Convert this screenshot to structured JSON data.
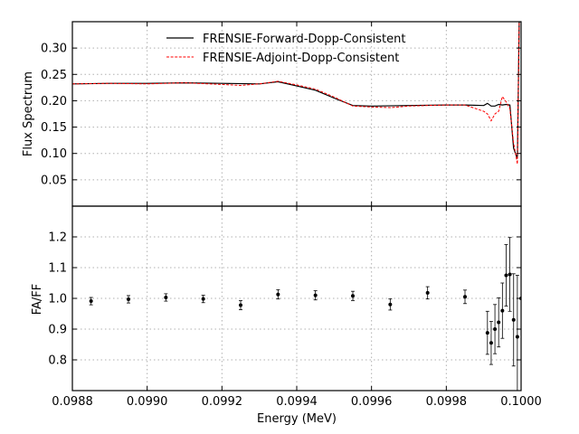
{
  "chart_data": [
    {
      "type": "line",
      "title": "",
      "xlabel": "",
      "ylabel": "Flux Spectrum",
      "xlim": [
        0.0988,
        0.1
      ],
      "ylim": [
        0.0,
        0.35
      ],
      "yticks": [
        0.05,
        0.1,
        0.15,
        0.2,
        0.25,
        0.3
      ],
      "ytick_labels": [
        "0.05",
        "0.10",
        "0.15",
        "0.20",
        "0.25",
        "0.30"
      ],
      "grid": true,
      "legend": "top-center",
      "series": [
        {
          "name": "FRENSIE-Forward-Dopp-Consistent",
          "color": "#000000",
          "style": "solid",
          "x": [
            0.0988,
            0.0989,
            0.099,
            0.0991,
            0.0992,
            0.0993,
            0.09935,
            0.0994,
            0.09945,
            0.0995,
            0.09955,
            0.0996,
            0.0997,
            0.0998,
            0.09985,
            0.0999,
            0.09991,
            0.09992,
            0.09993,
            0.09994,
            0.09995,
            0.09996,
            0.09997,
            0.09998,
            0.09999,
            0.099995,
            0.1
          ],
          "y": [
            0.232,
            0.233,
            0.233,
            0.234,
            0.233,
            0.232,
            0.236,
            0.228,
            0.22,
            0.205,
            0.191,
            0.19,
            0.191,
            0.192,
            0.192,
            0.191,
            0.195,
            0.19,
            0.19,
            0.193,
            0.192,
            0.193,
            0.192,
            0.11,
            0.09,
            0.35,
            0.35
          ]
        },
        {
          "name": "FRENSIE-Adjoint-Dopp-Consistent",
          "color": "#ff0000",
          "style": "dashed",
          "x": [
            0.0988,
            0.0989,
            0.099,
            0.0991,
            0.0992,
            0.09925,
            0.0993,
            0.09935,
            0.0994,
            0.09945,
            0.0995,
            0.09955,
            0.0996,
            0.09965,
            0.0997,
            0.0998,
            0.09985,
            0.0999,
            0.09991,
            0.09992,
            0.09993,
            0.09994,
            0.09995,
            0.09996,
            0.09997,
            0.09998,
            0.09999,
            0.099995,
            0.1
          ],
          "y": [
            0.232,
            0.233,
            0.232,
            0.234,
            0.231,
            0.229,
            0.232,
            0.237,
            0.23,
            0.222,
            0.207,
            0.19,
            0.188,
            0.187,
            0.19,
            0.192,
            0.192,
            0.18,
            0.175,
            0.162,
            0.175,
            0.18,
            0.208,
            0.198,
            0.185,
            0.12,
            0.08,
            0.35,
            0.35
          ]
        }
      ]
    },
    {
      "type": "scatter",
      "title": "",
      "xlabel": "Energy (MeV)",
      "ylabel": "FA/FF",
      "xlim": [
        0.0988,
        0.1
      ],
      "ylim": [
        0.7,
        1.3
      ],
      "xticks": [
        0.0988,
        0.099,
        0.0992,
        0.0994,
        0.0996,
        0.0998,
        0.1
      ],
      "xtick_labels": [
        "0.0988",
        "0.0990",
        "0.0992",
        "0.0994",
        "0.0996",
        "0.0998",
        "0.1000"
      ],
      "yticks": [
        0.8,
        0.9,
        1.0,
        1.1,
        1.2
      ],
      "ytick_labels": [
        "0.8",
        "0.9",
        "1.0",
        "1.1",
        "1.2"
      ],
      "grid": true,
      "series": [
        {
          "color": "#000000",
          "x": [
            0.09885,
            0.09895,
            0.09905,
            0.09915,
            0.09925,
            0.09935,
            0.09945,
            0.09955,
            0.09965,
            0.09975,
            0.09985,
            0.09991,
            0.09992,
            0.09993,
            0.09994,
            0.09995,
            0.09996,
            0.09997,
            0.09998,
            0.09999,
            0.1
          ],
          "y": [
            0.991,
            0.997,
            1.003,
            0.998,
            0.978,
            1.013,
            1.01,
            1.008,
            0.98,
            1.018,
            1.005,
            0.888,
            0.855,
            0.9,
            0.922,
            0.96,
            1.075,
            1.078,
            0.93,
            0.875,
            1.0
          ],
          "err": [
            0.012,
            0.012,
            0.012,
            0.012,
            0.015,
            0.015,
            0.015,
            0.015,
            0.018,
            0.02,
            0.022,
            0.07,
            0.07,
            0.08,
            0.08,
            0.09,
            0.1,
            0.12,
            0.15,
            0.2,
            0.3
          ]
        }
      ]
    }
  ]
}
